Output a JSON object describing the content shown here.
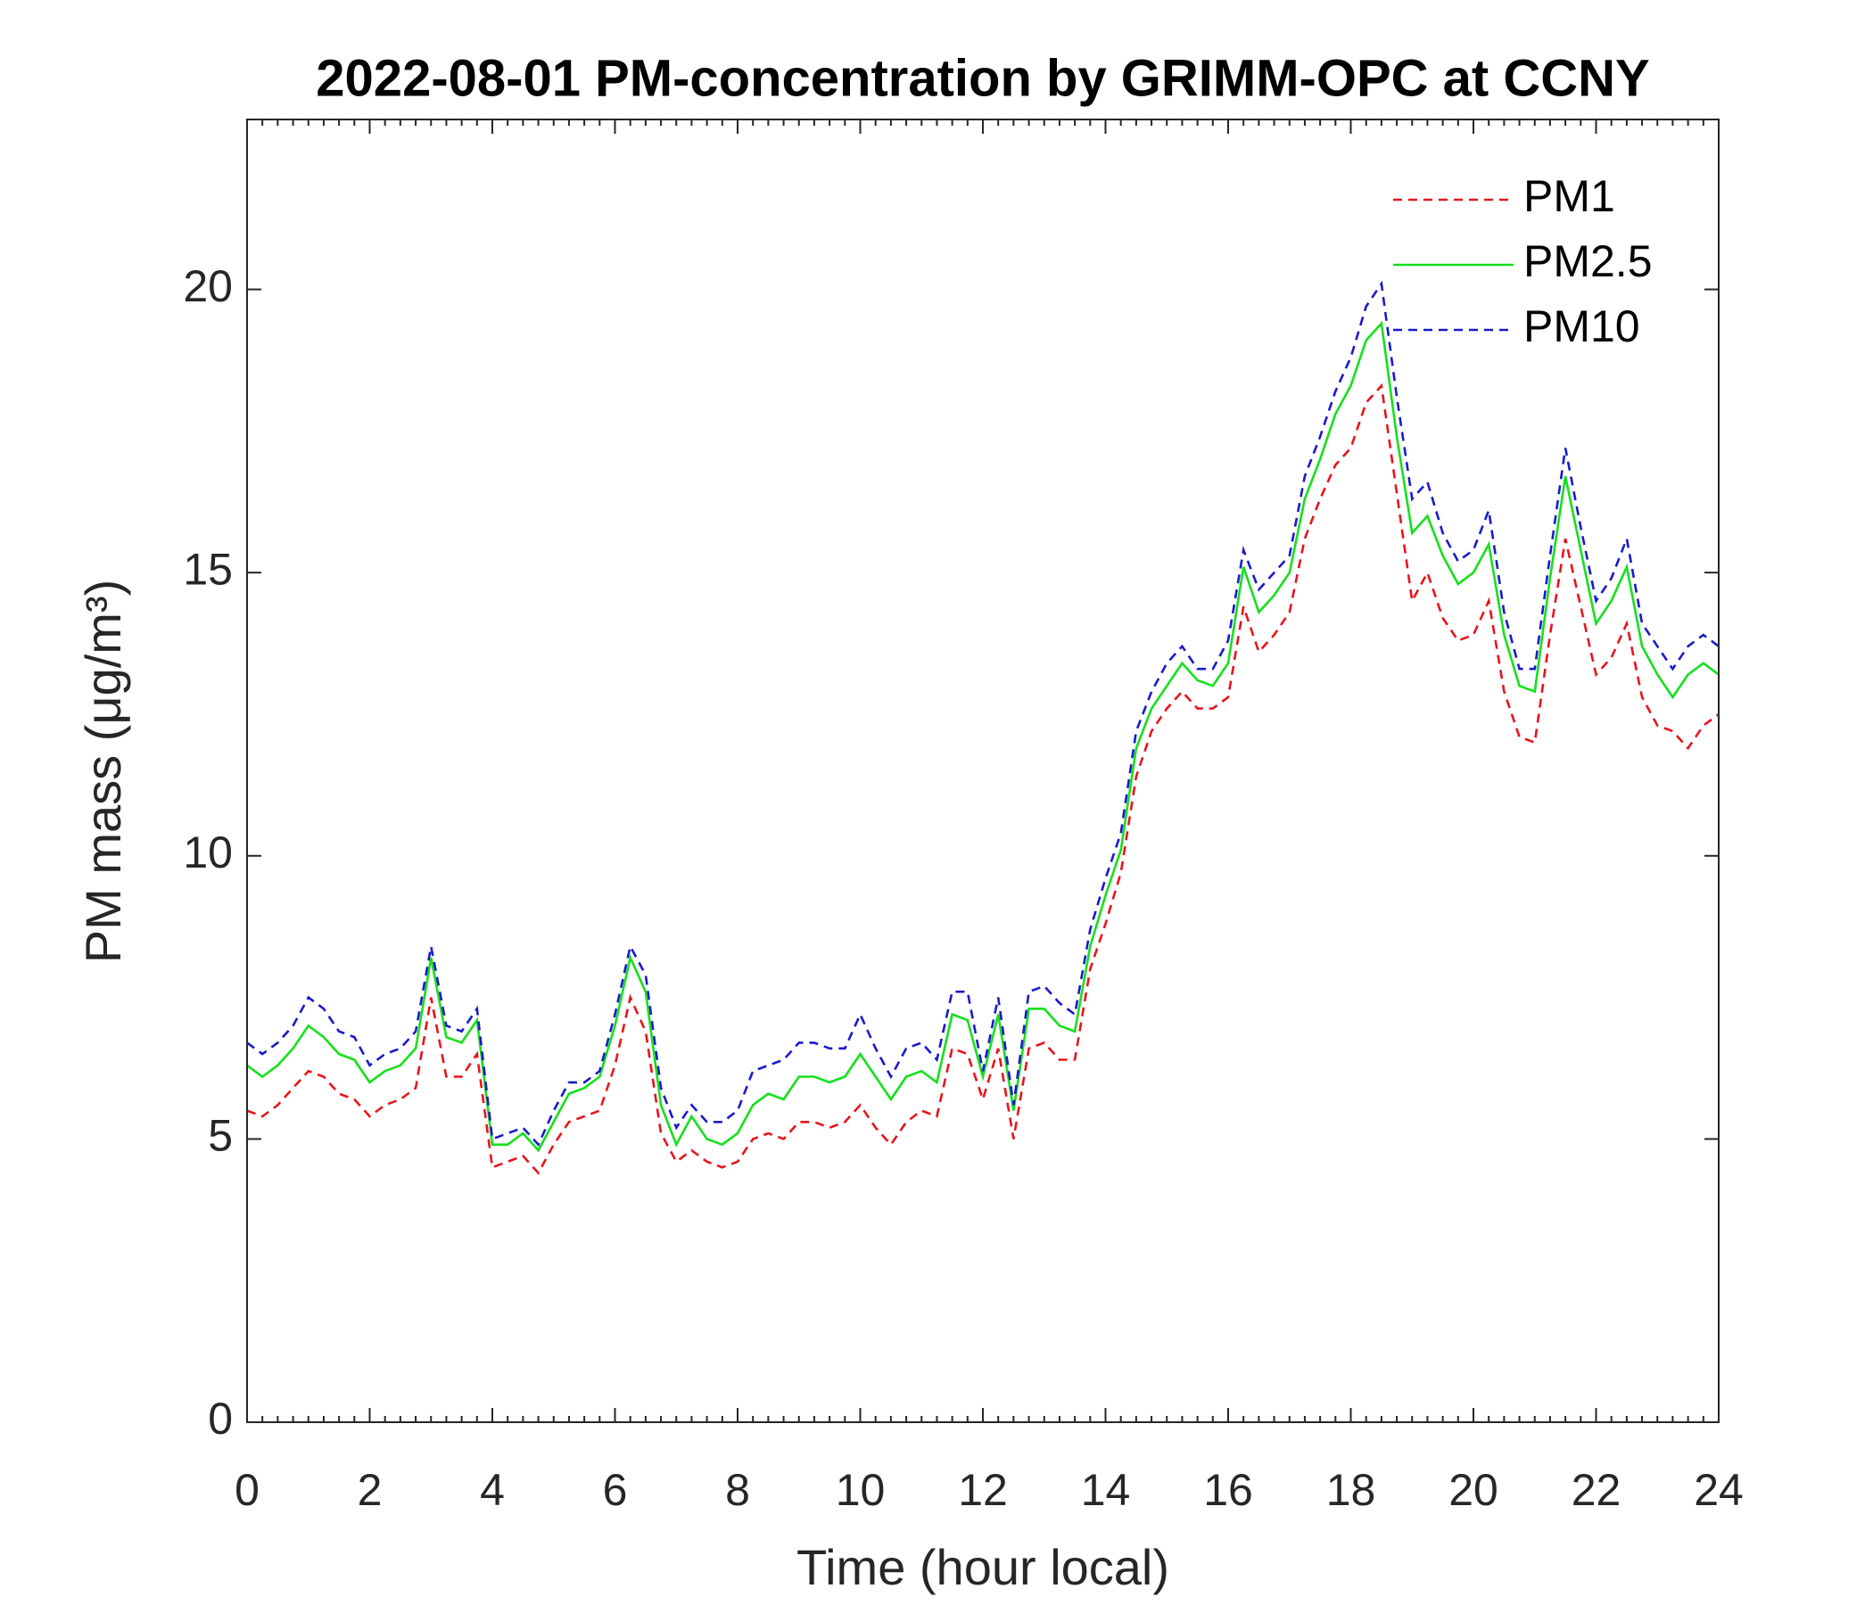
{
  "chart_data": {
    "type": "line",
    "title": "2022-08-01 PM-concentration by GRIMM-OPC at CCNY",
    "xlabel": "Time (hour local)",
    "ylabel": "PM mass (μg/m³)",
    "x": [
      0,
      0.25,
      0.5,
      0.75,
      1,
      1.25,
      1.5,
      1.75,
      2,
      2.25,
      2.5,
      2.75,
      3,
      3.25,
      3.5,
      3.75,
      4,
      4.25,
      4.5,
      4.75,
      5,
      5.25,
      5.5,
      5.75,
      6,
      6.25,
      6.5,
      6.75,
      7,
      7.25,
      7.5,
      7.75,
      8,
      8.25,
      8.5,
      8.75,
      9,
      9.25,
      9.5,
      9.75,
      10,
      10.25,
      10.5,
      10.75,
      11,
      11.25,
      11.5,
      11.75,
      12,
      12.25,
      12.5,
      12.75,
      13,
      13.25,
      13.5,
      13.75,
      14,
      14.25,
      14.5,
      14.75,
      15,
      15.25,
      15.5,
      15.75,
      16,
      16.25,
      16.5,
      16.75,
      17,
      17.25,
      17.5,
      17.75,
      18,
      18.25,
      18.5,
      18.75,
      19,
      19.25,
      19.5,
      19.75,
      20,
      20.25,
      20.5,
      20.75,
      21,
      21.25,
      21.5,
      21.75,
      22,
      22.25,
      22.5,
      22.75,
      23,
      23.25,
      23.5,
      23.75,
      24
    ],
    "series": [
      {
        "name": "PM1",
        "color": "#e8141c",
        "linestyle": "dashed",
        "values": [
          5.5,
          5.4,
          5.6,
          5.9,
          6.2,
          6.1,
          5.8,
          5.7,
          5.4,
          5.6,
          5.7,
          5.9,
          7.5,
          6.1,
          6.1,
          6.5,
          4.5,
          4.6,
          4.7,
          4.4,
          4.9,
          5.3,
          5.4,
          5.5,
          6.3,
          7.5,
          6.9,
          5.1,
          4.6,
          4.8,
          4.6,
          4.5,
          4.6,
          5.0,
          5.1,
          5.0,
          5.3,
          5.3,
          5.2,
          5.3,
          5.6,
          5.2,
          4.9,
          5.3,
          5.5,
          5.4,
          6.6,
          6.5,
          5.7,
          6.6,
          5.0,
          6.6,
          6.7,
          6.4,
          6.4,
          8.0,
          8.8,
          9.7,
          11.4,
          12.2,
          12.6,
          12.9,
          12.6,
          12.6,
          12.8,
          14.4,
          13.6,
          13.9,
          14.3,
          15.6,
          16.3,
          16.9,
          17.2,
          18.0,
          18.3,
          16.4,
          14.5,
          15.0,
          14.2,
          13.8,
          13.9,
          14.5,
          12.9,
          12.1,
          12.0,
          13.9,
          15.6,
          14.4,
          13.2,
          13.5,
          14.1,
          12.8,
          12.3,
          12.2,
          11.9,
          12.3,
          12.5
        ]
      },
      {
        "name": "PM2.5",
        "color": "#16e01c",
        "linestyle": "solid",
        "values": [
          6.3,
          6.1,
          6.3,
          6.6,
          7.0,
          6.8,
          6.5,
          6.4,
          6.0,
          6.2,
          6.3,
          6.6,
          8.2,
          6.8,
          6.7,
          7.1,
          4.9,
          4.9,
          5.1,
          4.8,
          5.3,
          5.8,
          5.9,
          6.1,
          7.0,
          8.2,
          7.6,
          5.6,
          4.9,
          5.4,
          5.0,
          4.9,
          5.1,
          5.6,
          5.8,
          5.7,
          6.1,
          6.1,
          6.0,
          6.1,
          6.5,
          6.1,
          5.7,
          6.1,
          6.2,
          6.0,
          7.2,
          7.1,
          6.1,
          7.2,
          5.5,
          7.3,
          7.3,
          7.0,
          6.9,
          8.4,
          9.3,
          10.1,
          11.9,
          12.6,
          13.0,
          13.4,
          13.1,
          13.0,
          13.4,
          15.1,
          14.3,
          14.6,
          15.0,
          16.3,
          17.0,
          17.8,
          18.3,
          19.1,
          19.4,
          17.4,
          15.7,
          16.0,
          15.3,
          14.8,
          15.0,
          15.5,
          13.9,
          13.0,
          12.9,
          14.9,
          16.7,
          15.4,
          14.1,
          14.5,
          15.1,
          13.7,
          13.2,
          12.8,
          13.2,
          13.4,
          13.2
        ]
      },
      {
        "name": "PM10",
        "color": "#1a1acc",
        "linestyle": "dashed",
        "values": [
          6.7,
          6.5,
          6.7,
          7.0,
          7.5,
          7.3,
          6.9,
          6.8,
          6.3,
          6.5,
          6.6,
          6.9,
          8.4,
          7.0,
          6.9,
          7.3,
          5.0,
          5.1,
          5.2,
          4.9,
          5.5,
          6.0,
          6.0,
          6.2,
          7.2,
          8.4,
          7.9,
          5.9,
          5.2,
          5.6,
          5.3,
          5.3,
          5.5,
          6.2,
          6.3,
          6.4,
          6.7,
          6.7,
          6.6,
          6.6,
          7.2,
          6.6,
          6.1,
          6.6,
          6.7,
          6.4,
          7.6,
          7.6,
          6.2,
          7.5,
          5.6,
          7.6,
          7.7,
          7.4,
          7.2,
          8.7,
          9.6,
          10.4,
          12.2,
          12.9,
          13.4,
          13.7,
          13.3,
          13.3,
          13.8,
          15.4,
          14.7,
          15.0,
          15.3,
          16.7,
          17.4,
          18.2,
          18.8,
          19.7,
          20.1,
          18.1,
          16.3,
          16.6,
          15.7,
          15.2,
          15.4,
          16.1,
          14.3,
          13.3,
          13.3,
          15.3,
          17.2,
          15.8,
          14.5,
          14.9,
          15.6,
          14.1,
          13.7,
          13.3,
          13.7,
          13.9,
          13.7
        ]
      }
    ],
    "xlim": [
      0,
      24
    ],
    "xticks": [
      0,
      2,
      4,
      6,
      8,
      10,
      12,
      14,
      16,
      18,
      20,
      22,
      24
    ],
    "ylim": [
      0,
      23
    ],
    "yticks": [
      0,
      5,
      10,
      15,
      20
    ],
    "grid": false,
    "legend": "upper right"
  }
}
